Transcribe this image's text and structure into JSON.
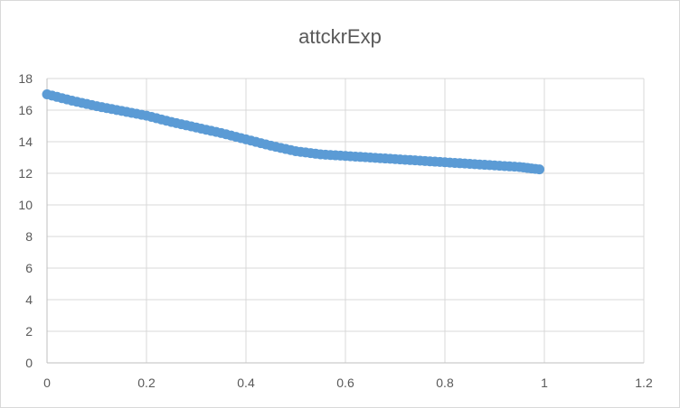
{
  "chart_data": {
    "type": "scatter",
    "title": "attckrExp",
    "xlabel": "",
    "ylabel": "",
    "xlim": [
      0,
      1.2
    ],
    "ylim": [
      0,
      18
    ],
    "x_ticks": [
      0,
      0.2,
      0.4,
      0.6,
      0.8,
      1,
      1.2
    ],
    "x_tick_labels": [
      "0",
      "0.2",
      "0.4",
      "0.6",
      "0.8",
      "1",
      "1.2"
    ],
    "y_ticks": [
      0,
      2,
      4,
      6,
      8,
      10,
      12,
      14,
      16,
      18
    ],
    "y_tick_labels": [
      "0",
      "2",
      "4",
      "6",
      "8",
      "10",
      "12",
      "14",
      "16",
      "18"
    ],
    "grid": true,
    "legend": "none",
    "series": [
      {
        "color": "#5b9bd5",
        "points": [
          [
            0.0,
            17.0
          ],
          [
            0.05,
            16.6
          ],
          [
            0.1,
            16.25
          ],
          [
            0.15,
            15.95
          ],
          [
            0.2,
            15.65
          ],
          [
            0.25,
            15.25
          ],
          [
            0.3,
            14.9
          ],
          [
            0.35,
            14.55
          ],
          [
            0.4,
            14.15
          ],
          [
            0.45,
            13.75
          ],
          [
            0.5,
            13.4
          ],
          [
            0.55,
            13.2
          ],
          [
            0.6,
            13.1
          ],
          [
            0.65,
            13.0
          ],
          [
            0.7,
            12.9
          ],
          [
            0.75,
            12.8
          ],
          [
            0.8,
            12.7
          ],
          [
            0.85,
            12.6
          ],
          [
            0.9,
            12.5
          ],
          [
            0.95,
            12.4
          ],
          [
            0.99,
            12.25
          ]
        ]
      }
    ]
  }
}
